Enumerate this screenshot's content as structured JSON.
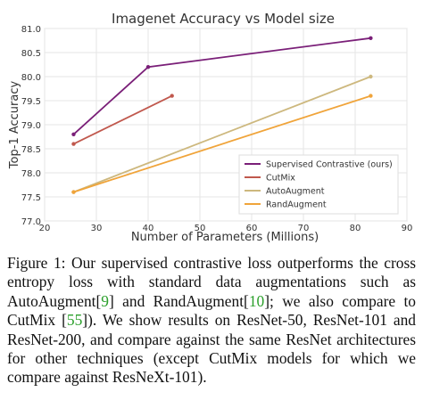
{
  "chart_data": {
    "type": "line",
    "title": "Imagenet Accuracy vs Model size",
    "x_label": "Number of Parameters (Millions)",
    "y_label": "Top-1 Accuracy",
    "xlim": [
      20,
      90
    ],
    "xticks": [
      20,
      30,
      40,
      50,
      60,
      70,
      80,
      90
    ],
    "ylim": [
      77,
      81
    ],
    "yticks": [
      {
        "value": 77,
        "label": "77.0"
      },
      77.5,
      {
        "value": 78,
        "label": "78.0"
      },
      78.5,
      {
        "value": 79,
        "label": "79.0"
      },
      79.5,
      {
        "value": 80,
        "label": "80.0"
      },
      80.5,
      {
        "value": 81,
        "label": "81.0"
      }
    ],
    "grid": true,
    "legend": "lower right",
    "series": [
      {
        "name": "Supervised Contrastive (ours)",
        "color": "#7a1f78",
        "x": [
          25.6,
          40,
          83
        ],
        "values": [
          78.8,
          80.2,
          80.8
        ]
      },
      {
        "name": "CutMix",
        "color": "#c0584d",
        "x": [
          25.6,
          44.6
        ],
        "values": [
          78.6,
          79.6
        ]
      },
      {
        "name": "AutoAugment",
        "color": "#cdb87e",
        "x": [
          25.6,
          83
        ],
        "values": [
          77.6,
          80.0
        ]
      },
      {
        "name": "RandAugment",
        "color": "#f0a43a",
        "x": [
          25.6,
          83
        ],
        "values": [
          77.6,
          79.6
        ]
      }
    ]
  },
  "caption": [
    "Figure 1:  Our supervised contrastive loss outperforms the cross entropy loss with standard data augmentations such as AutoAugment[",
    "9",
    "] and RandAugment[",
    "10",
    "]; we also compare to CutMix [",
    "55",
    "]).  We show results on ResNet-50, ResNet-101 and ResNet-200, and compare against the same ResNet architectures for other techniques (except CutMix models for which we compare against ResNeXt-101)."
  ]
}
